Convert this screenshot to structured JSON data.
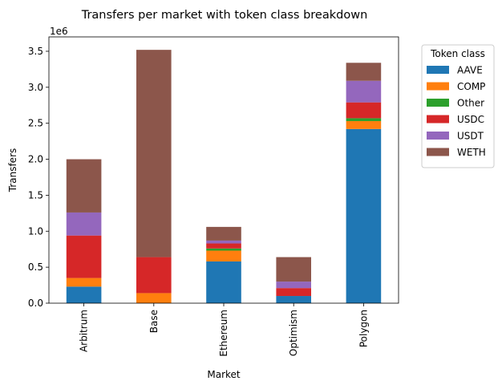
{
  "chart_data": {
    "type": "bar",
    "stacked": true,
    "title": "Transfers per market with token class breakdown",
    "xlabel": "Market",
    "ylabel": "Transfers",
    "y_offset_label": "1e6",
    "categories": [
      "Arbitrum",
      "Base",
      "Ethereum",
      "Optimism",
      "Polygon"
    ],
    "ylim": [
      0,
      3.7
    ],
    "yticks": [
      0.0,
      0.5,
      1.0,
      1.5,
      2.0,
      2.5,
      3.0,
      3.5
    ],
    "ytick_labels": [
      "0.0",
      "0.5",
      "1.0",
      "1.5",
      "2.0",
      "2.5",
      "3.0",
      "3.5"
    ],
    "legend": {
      "title": "Token class",
      "placement": "outside-right-top"
    },
    "series": [
      {
        "name": "AAVE",
        "color": "#1f77b4",
        "values": [
          0.23,
          0.0,
          0.58,
          0.1,
          2.42
        ]
      },
      {
        "name": "COMP",
        "color": "#ff7f0e",
        "values": [
          0.12,
          0.14,
          0.15,
          0.0,
          0.11
        ]
      },
      {
        "name": "Other",
        "color": "#2ca02c",
        "values": [
          0.0,
          0.0,
          0.03,
          0.0,
          0.04
        ]
      },
      {
        "name": "USDC",
        "color": "#d62728",
        "values": [
          0.59,
          0.5,
          0.07,
          0.11,
          0.22
        ]
      },
      {
        "name": "USDT",
        "color": "#9467bd",
        "values": [
          0.32,
          0.0,
          0.04,
          0.09,
          0.3
        ]
      },
      {
        "name": "WETH",
        "color": "#8c564b",
        "values": [
          0.74,
          2.88,
          0.19,
          0.34,
          0.25
        ]
      }
    ]
  }
}
